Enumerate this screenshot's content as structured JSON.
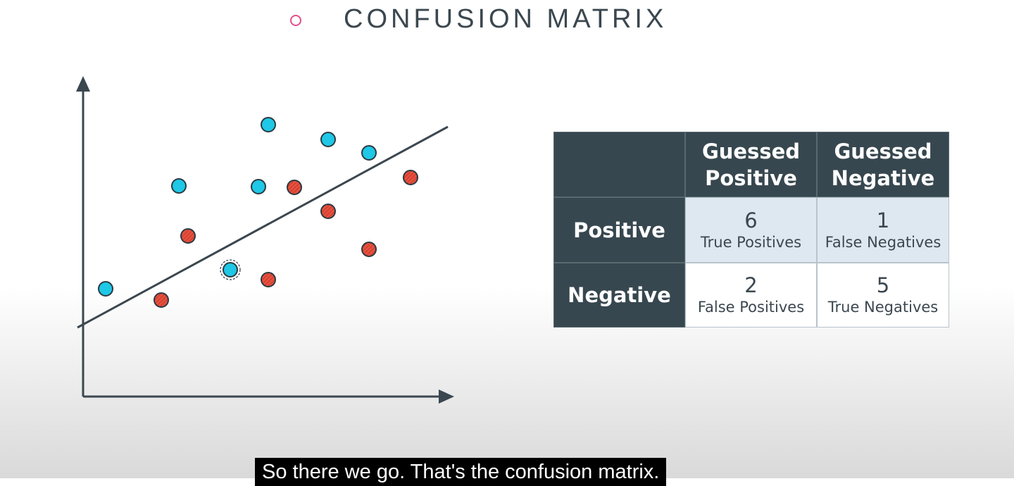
{
  "header": {
    "title": "CONFUSION MATRIX"
  },
  "table": {
    "columns": [
      "Guessed Positive",
      "Guessed Negative"
    ],
    "rows": [
      {
        "label": "Positive",
        "cells": [
          {
            "count": 6,
            "label": "True Positives"
          },
          {
            "count": 1,
            "label": "False Negatives"
          }
        ]
      },
      {
        "label": "Negative",
        "cells": [
          {
            "count": 2,
            "label": "False Positives"
          },
          {
            "count": 5,
            "label": "True Negatives"
          }
        ]
      }
    ]
  },
  "caption": "So there we go. That's the confusion matrix."
}
